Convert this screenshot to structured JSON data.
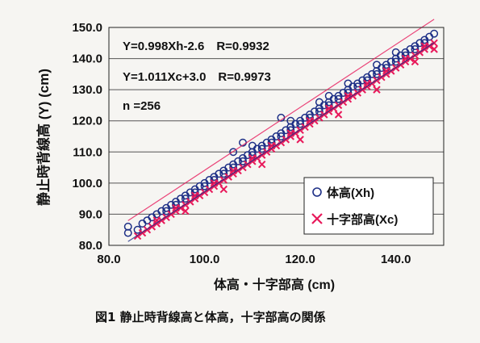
{
  "chart_data": {
    "type": "scatter",
    "xlabel": "体高・十字部高 (cm)",
    "ylabel": "静止時背線高 (Y) (cm)",
    "caption": "図1 静止時背線高と体高，十字部高の関係",
    "xlim": [
      80,
      150
    ],
    "ylim": [
      80,
      150
    ],
    "x_ticks": [
      "80.0",
      "100.0",
      "120.0",
      "140.0"
    ],
    "y_ticks": [
      "80.0",
      "90.0",
      "100.0",
      "110.0",
      "120.0",
      "130.0",
      "140.0",
      "150.0"
    ],
    "grid": "horizontal",
    "legend_position": "bottom-right",
    "annotations": [
      "Y=0.998Xh-2.6　R=0.9932",
      "Y=1.011Xc+3.0　R=0.9973",
      "n =256"
    ],
    "colors": {
      "Xh": "#1d2f86",
      "Xc": "#e8185a"
    },
    "series": [
      {
        "name": "体高(Xh)",
        "marker": "circle",
        "regression": {
          "slope": 0.998,
          "intercept": -2.6,
          "r": 0.9932
        },
        "points": [
          [
            84,
            84
          ],
          [
            84,
            86
          ],
          [
            86,
            85
          ],
          [
            87,
            87
          ],
          [
            88,
            88
          ],
          [
            89,
            89
          ],
          [
            90,
            90
          ],
          [
            91,
            91
          ],
          [
            92,
            92
          ],
          [
            93,
            93
          ],
          [
            94,
            94
          ],
          [
            95,
            95
          ],
          [
            96,
            96
          ],
          [
            97,
            97
          ],
          [
            98,
            98
          ],
          [
            99,
            99
          ],
          [
            100,
            100
          ],
          [
            101,
            101
          ],
          [
            102,
            102
          ],
          [
            103,
            103
          ],
          [
            104,
            104
          ],
          [
            105,
            105
          ],
          [
            106,
            106
          ],
          [
            107,
            107
          ],
          [
            108,
            108
          ],
          [
            109,
            109
          ],
          [
            110,
            110
          ],
          [
            111,
            111
          ],
          [
            112,
            112
          ],
          [
            113,
            113
          ],
          [
            114,
            114
          ],
          [
            115,
            115
          ],
          [
            116,
            116
          ],
          [
            117,
            117
          ],
          [
            118,
            118
          ],
          [
            119,
            119
          ],
          [
            120,
            120
          ],
          [
            121,
            121
          ],
          [
            122,
            122
          ],
          [
            123,
            123
          ],
          [
            124,
            124
          ],
          [
            125,
            125
          ],
          [
            126,
            126
          ],
          [
            127,
            127
          ],
          [
            128,
            128
          ],
          [
            129,
            129
          ],
          [
            130,
            130
          ],
          [
            131,
            131
          ],
          [
            132,
            132
          ],
          [
            133,
            133
          ],
          [
            134,
            134
          ],
          [
            135,
            135
          ],
          [
            136,
            136
          ],
          [
            137,
            137
          ],
          [
            138,
            138
          ],
          [
            139,
            139
          ],
          [
            140,
            140
          ],
          [
            141,
            141
          ],
          [
            142,
            142
          ],
          [
            143,
            143
          ],
          [
            144,
            144
          ],
          [
            145,
            145
          ],
          [
            146,
            146
          ],
          [
            147,
            147
          ],
          [
            148,
            148
          ],
          [
            92,
            91
          ],
          [
            94,
            93
          ],
          [
            96,
            95
          ],
          [
            98,
            97
          ],
          [
            100,
            99
          ],
          [
            102,
            101
          ],
          [
            104,
            103
          ],
          [
            106,
            105
          ],
          [
            108,
            107
          ],
          [
            110,
            109
          ],
          [
            112,
            111
          ],
          [
            114,
            113
          ],
          [
            116,
            115
          ],
          [
            118,
            117
          ],
          [
            120,
            119
          ],
          [
            122,
            121
          ],
          [
            124,
            123
          ],
          [
            126,
            125
          ],
          [
            128,
            127
          ],
          [
            130,
            129
          ],
          [
            132,
            131
          ],
          [
            134,
            133
          ],
          [
            136,
            135
          ],
          [
            138,
            137
          ],
          [
            140,
            139
          ],
          [
            142,
            141
          ],
          [
            144,
            143
          ],
          [
            146,
            145
          ],
          [
            106,
            110
          ],
          [
            108,
            113
          ],
          [
            110,
            112
          ],
          [
            116,
            121
          ],
          [
            118,
            120
          ],
          [
            124,
            126
          ],
          [
            126,
            128
          ],
          [
            130,
            132
          ],
          [
            136,
            138
          ],
          [
            140,
            142
          ]
        ]
      },
      {
        "name": "十字部高(Xc)",
        "marker": "cross",
        "regression": {
          "slope": 1.011,
          "intercept": 3.0,
          "r": 0.9973
        },
        "points": [
          [
            86,
            83
          ],
          [
            87,
            84
          ],
          [
            88,
            85
          ],
          [
            89,
            86
          ],
          [
            90,
            87
          ],
          [
            91,
            88
          ],
          [
            92,
            89
          ],
          [
            93,
            90
          ],
          [
            94,
            91
          ],
          [
            95,
            92
          ],
          [
            96,
            93
          ],
          [
            97,
            94
          ],
          [
            98,
            95
          ],
          [
            99,
            96
          ],
          [
            100,
            97
          ],
          [
            101,
            98
          ],
          [
            102,
            99
          ],
          [
            103,
            100
          ],
          [
            104,
            101
          ],
          [
            105,
            102
          ],
          [
            106,
            103
          ],
          [
            107,
            104
          ],
          [
            108,
            105
          ],
          [
            109,
            106
          ],
          [
            110,
            107
          ],
          [
            111,
            108
          ],
          [
            112,
            109
          ],
          [
            113,
            110
          ],
          [
            114,
            111
          ],
          [
            115,
            112
          ],
          [
            116,
            113
          ],
          [
            117,
            114
          ],
          [
            118,
            115
          ],
          [
            119,
            116
          ],
          [
            120,
            117
          ],
          [
            121,
            118
          ],
          [
            122,
            119
          ],
          [
            123,
            120
          ],
          [
            124,
            121
          ],
          [
            125,
            122
          ],
          [
            126,
            123
          ],
          [
            127,
            124
          ],
          [
            128,
            125
          ],
          [
            129,
            126
          ],
          [
            130,
            127
          ],
          [
            131,
            128
          ],
          [
            132,
            129
          ],
          [
            133,
            130
          ],
          [
            134,
            131
          ],
          [
            135,
            132
          ],
          [
            136,
            133
          ],
          [
            137,
            134
          ],
          [
            138,
            135
          ],
          [
            139,
            136
          ],
          [
            140,
            137
          ],
          [
            141,
            138
          ],
          [
            142,
            139
          ],
          [
            143,
            140
          ],
          [
            144,
            141
          ],
          [
            145,
            142
          ],
          [
            146,
            143
          ],
          [
            147,
            144
          ],
          [
            148,
            145
          ],
          [
            90,
            88
          ],
          [
            94,
            92
          ],
          [
            98,
            96
          ],
          [
            102,
            100
          ],
          [
            106,
            104
          ],
          [
            110,
            108
          ],
          [
            114,
            112
          ],
          [
            118,
            116
          ],
          [
            122,
            120
          ],
          [
            126,
            124
          ],
          [
            130,
            128
          ],
          [
            134,
            132
          ],
          [
            138,
            136
          ],
          [
            142,
            140
          ],
          [
            146,
            144
          ],
          [
            96,
            91
          ],
          [
            104,
            98
          ],
          [
            112,
            106
          ],
          [
            120,
            114
          ],
          [
            128,
            122
          ],
          [
            136,
            130
          ],
          [
            144,
            139
          ],
          [
            148,
            143
          ]
        ]
      }
    ]
  }
}
